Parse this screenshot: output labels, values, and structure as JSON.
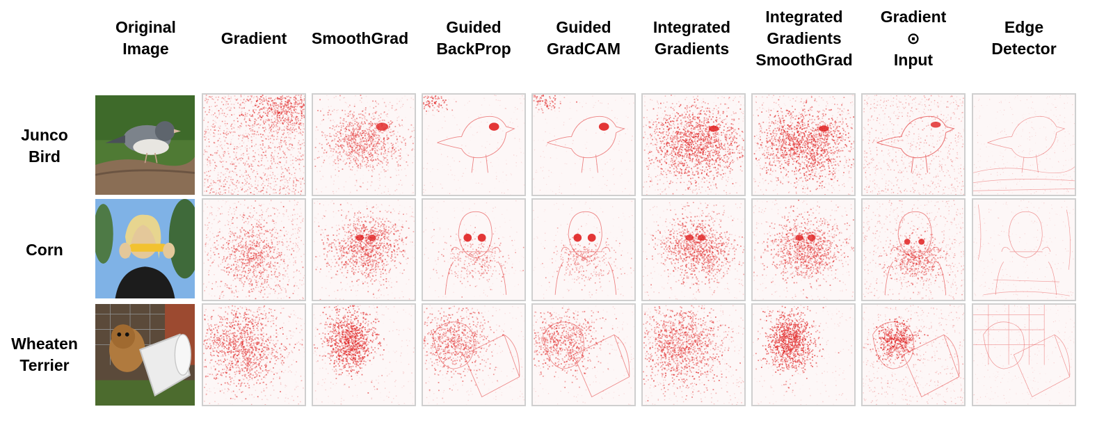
{
  "columns": [
    {
      "id": "original",
      "label": "Original\nImage"
    },
    {
      "id": "gradient",
      "label": "Gradient"
    },
    {
      "id": "smoothgrad",
      "label": "SmoothGrad"
    },
    {
      "id": "guided-backprop",
      "label": "Guided\nBackProp"
    },
    {
      "id": "guided-gradcam",
      "label": "Guided\nGradCAM"
    },
    {
      "id": "integrated-gradients",
      "label": "Integrated\nGradients"
    },
    {
      "id": "ig-smoothgrad",
      "label": "Integrated\nGradients\nSmoothGrad"
    },
    {
      "id": "gradient-input",
      "label": "Gradient\n⊙\nInput"
    },
    {
      "id": "edge-detector",
      "label": "Edge\nDetector"
    }
  ],
  "rows": [
    {
      "id": "junco",
      "label": "Junco\nBird",
      "photo": "junco-bird-photo"
    },
    {
      "id": "corn",
      "label": "Corn",
      "photo": "girl-eating-corn-photo"
    },
    {
      "id": "terrier",
      "label": "Wheaten\nTerrier",
      "photo": "terrier-with-bucket-photo"
    }
  ],
  "colors": {
    "saliency": "#e02020",
    "border": "#cfcfcf",
    "background": "#ffffff"
  }
}
